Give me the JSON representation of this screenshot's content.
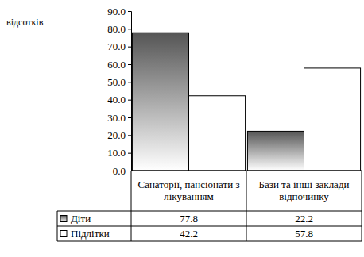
{
  "chart_data": {
    "type": "bar",
    "y_label": "відсотків",
    "categories": [
      "Санаторії, пансіонати з лікуванням",
      "Бази та інші заклади відпочинку"
    ],
    "series": [
      {
        "name": "Діти",
        "color": "#555555",
        "values": [
          77.8,
          22.2
        ]
      },
      {
        "name": "Підлітки",
        "color": "#ffffff",
        "values": [
          42.2,
          57.8
        ]
      }
    ],
    "ylim": [
      0,
      90
    ],
    "yticks": [
      {
        "value": 0,
        "label": "0.0"
      },
      {
        "value": 10,
        "label": "10.0"
      },
      {
        "value": 20,
        "label": "20.0"
      },
      {
        "value": 30,
        "label": "30.0"
      },
      {
        "value": 40,
        "label": "40.0"
      },
      {
        "value": 50,
        "label": "50.0"
      },
      {
        "value": 60,
        "label": "60.0"
      },
      {
        "value": 70,
        "label": "70.0"
      },
      {
        "value": 80,
        "label": "80.0"
      },
      {
        "value": 90,
        "label": "90.0"
      }
    ],
    "grid": false,
    "data_labels": true
  }
}
